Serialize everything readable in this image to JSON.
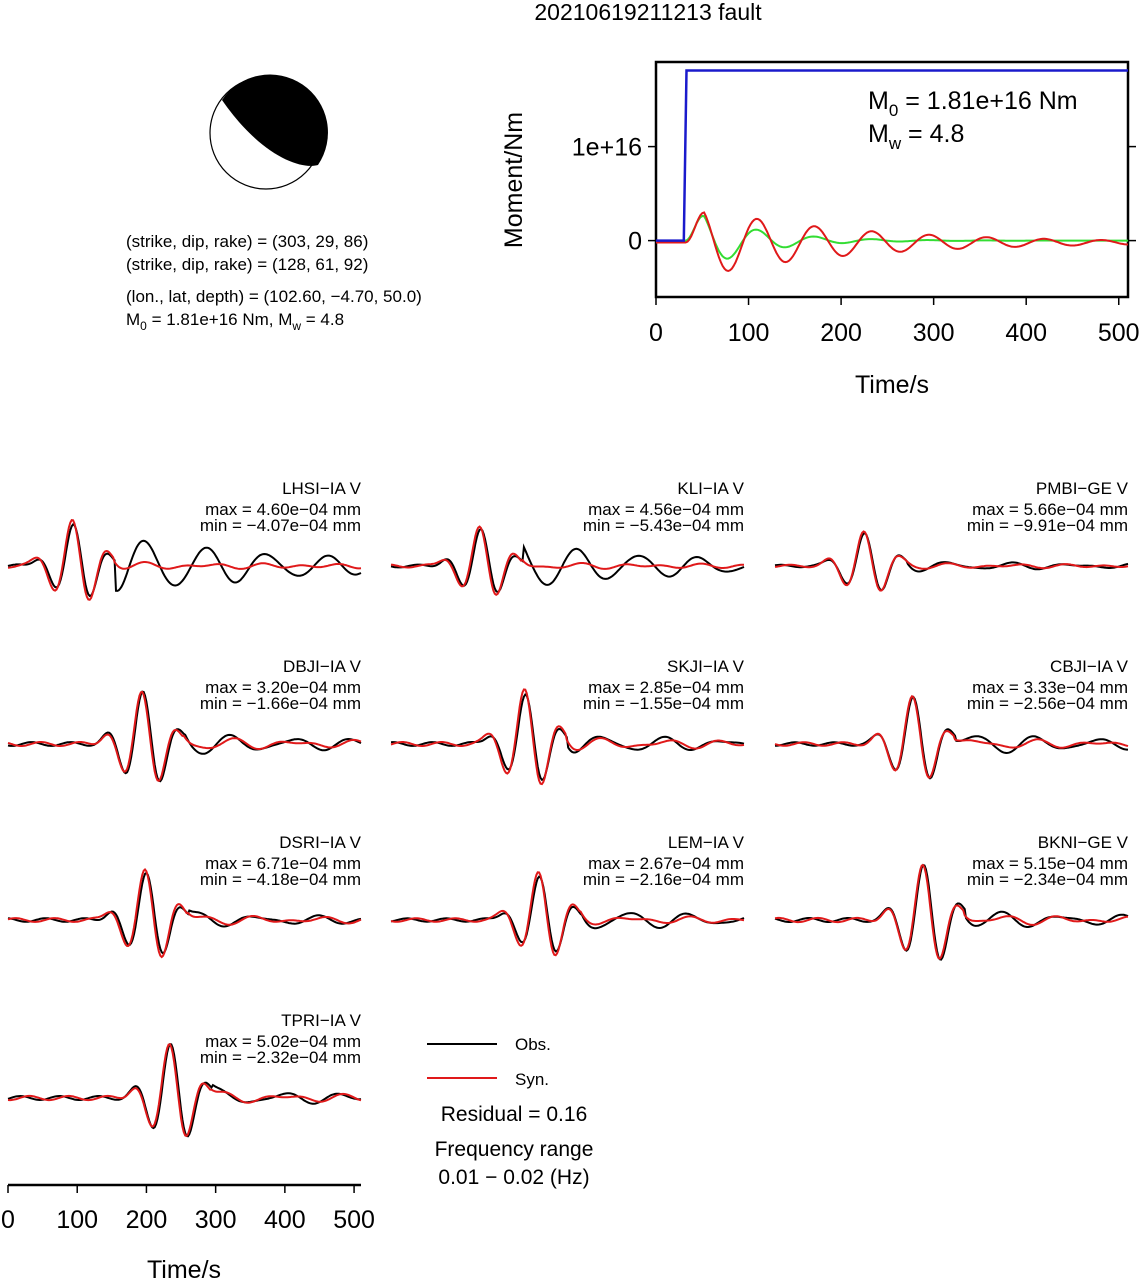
{
  "title": "20210619211213 fault",
  "solution": {
    "plane1": "(strike, dip, rake) = (303, 29, 86)",
    "plane2": "(strike, dip, rake) = (128, 61, 92)",
    "location": "(lon., lat, depth) = (102.60, −4.70, 50.0)",
    "moment_base": "M",
    "moment_sub": "0",
    "moment_rest": " = 1.81e+16 Nm, M",
    "mw_sub": "w",
    "mw_rest": " = 4.8"
  },
  "stf": {
    "m0_label": "M",
    "m0_sub": "0",
    "m0_value": " = 1.81e+16 Nm",
    "mw_label": "M",
    "mw_sub": "w",
    "mw_value": " = 4.8"
  },
  "legend": {
    "obs": "Obs.",
    "syn": "Syn.",
    "residual": "Residual = 0.16",
    "freq_title": "Frequency range",
    "freq_value": "0.01 − 0.02 (Hz)"
  },
  "colors": {
    "observed": "#000000",
    "synthetic": "#e0191a",
    "moment_cumulative": "#1a1acc",
    "moment_rate_green": "#33dd33",
    "beachball_fill": "#000000"
  },
  "chart_data": [
    {
      "type": "line",
      "panel": "source time function",
      "xlabel": "Time/s",
      "ylabel": "Moment/Nm",
      "xlim": [
        0,
        510
      ],
      "ylim": [
        -6000000000000000,
        19000000000000000
      ],
      "xticks": [
        0,
        100,
        200,
        300,
        400,
        500
      ],
      "yticks": [
        0,
        10000000000000000
      ],
      "ytick_labels": [
        "0",
        "1e+16"
      ],
      "series": [
        {
          "color": "#1a1acc",
          "x": [
            0,
            30,
            33,
            510
          ],
          "y": [
            0,
            0,
            18100000000000000,
            18100000000000000
          ]
        },
        {
          "color": "#33dd33",
          "decay": 0.016,
          "amplitude": 4000000000000000
        },
        {
          "color": "#e0191a",
          "decay": 0.006,
          "amplitude": 4000000000000000
        }
      ]
    },
    {
      "type": "line",
      "panel": "waveforms",
      "xlabel": "Time/s",
      "xlim": [
        0,
        510
      ],
      "xticks": [
        0,
        100,
        200,
        300,
        400,
        500
      ],
      "stations": [
        {
          "name": "LHSI−IA V",
          "max": "max = 4.60e−04 mm",
          "min": "min = −4.07e−04 mm",
          "max_value": 0.00046,
          "min_value": -0.000407,
          "peak_time": 95,
          "obs_tail": 0.55,
          "syn_tail": 0.05
        },
        {
          "name": "KLI−IA V",
          "max": "max = 4.56e−04 mm",
          "min": "min = −5.43e−04 mm",
          "max_value": 0.000456,
          "min_value": -0.000543,
          "peak_time": 130,
          "obs_tail": 0.45,
          "syn_tail": 0.05
        },
        {
          "name": "PMBI−GE V",
          "max": "max = 5.66e−04 mm",
          "min": "min = −9.91e−04 mm",
          "max_value": 0.000566,
          "min_value": -0.000991,
          "peak_time": 130,
          "obs_tail": 0.12,
          "syn_tail": 0.05
        },
        {
          "name": "DBJI−IA V",
          "max": "max = 3.20e−04 mm",
          "min": "min = −1.66e−04 mm",
          "max_value": 0.00032,
          "min_value": -0.000166,
          "peak_time": 195,
          "obs_tail": 0.15,
          "syn_tail": 0.08
        },
        {
          "name": "SKJI−IA V",
          "max": "max = 2.85e−04 mm",
          "min": "min = −1.55e−04 mm",
          "max_value": 0.000285,
          "min_value": -0.000155,
          "peak_time": 195,
          "obs_tail": 0.15,
          "syn_tail": 0.08
        },
        {
          "name": "CBJI−IA V",
          "max": "max = 3.33e−04 mm",
          "min": "min = −2.56e−04 mm",
          "max_value": 0.000333,
          "min_value": -0.000256,
          "peak_time": 200,
          "obs_tail": 0.18,
          "syn_tail": 0.08
        },
        {
          "name": "DSRI−IA V",
          "max": "max = 6.71e−04 mm",
          "min": "min = −4.18e−04 mm",
          "max_value": 0.000671,
          "min_value": -0.000418,
          "peak_time": 200,
          "obs_tail": 0.1,
          "syn_tail": 0.06
        },
        {
          "name": "LEM−IA V",
          "max": "max = 2.67e−04 mm",
          "min": "min = −2.16e−04 mm",
          "max_value": 0.000267,
          "min_value": -0.000216,
          "peak_time": 215,
          "obs_tail": 0.18,
          "syn_tail": 0.06
        },
        {
          "name": "BKNI−GE V",
          "max": "max = 5.15e−04 mm",
          "min": "min = −2.34e−04 mm",
          "max_value": 0.000515,
          "min_value": -0.000234,
          "peak_time": 215,
          "obs_tail": 0.12,
          "syn_tail": 0.06
        },
        {
          "name": "TPRI−IA V",
          "max": "max = 5.02e−04 mm",
          "min": "min = −2.32e−04 mm",
          "max_value": 0.000502,
          "min_value": -0.000232,
          "peak_time": 235,
          "obs_tail": 0.1,
          "syn_tail": 0.06
        }
      ]
    }
  ]
}
